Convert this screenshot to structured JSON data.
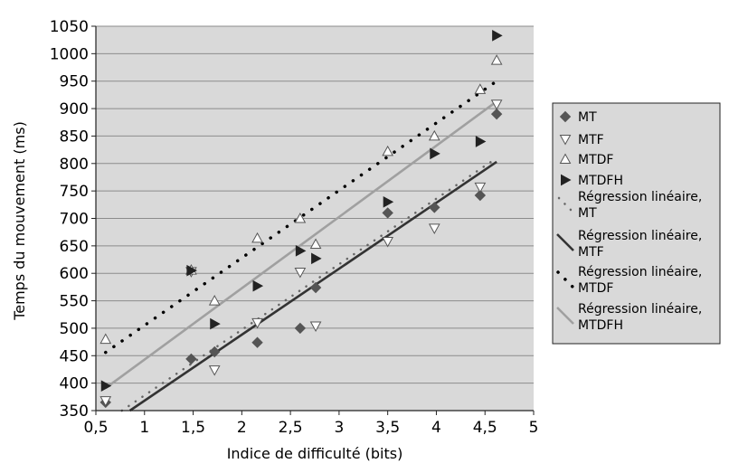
{
  "chart_data": {
    "type": "scatter",
    "title": "",
    "xlabel": "Indice de difficulté (bits)",
    "ylabel": "Temps du mouvement (ms)",
    "xlim": [
      0.5,
      5
    ],
    "ylim": [
      350,
      1050
    ],
    "xticks": [
      0.5,
      1,
      1.5,
      2,
      2.5,
      3,
      3.5,
      4,
      4.5,
      5
    ],
    "xtick_labels": [
      "0,5",
      "1",
      "1,5",
      "2",
      "2,5",
      "3",
      "3,5",
      "4",
      "4,5",
      "5"
    ],
    "yticks": [
      350,
      400,
      450,
      500,
      550,
      600,
      650,
      700,
      750,
      800,
      850,
      900,
      950,
      1000,
      1050
    ],
    "ytick_labels": [
      "350",
      "400",
      "450",
      "500",
      "550",
      "600",
      "650",
      "700",
      "750",
      "800",
      "850",
      "900",
      "950",
      "1000",
      "1050"
    ],
    "grid": "horizontal",
    "legend_position": "right",
    "plot_background": "#d9d9d9",
    "series": [
      {
        "name": "MT",
        "marker": "diamond",
        "color": "#555555",
        "x": [
          0.6,
          1.48,
          1.72,
          2.16,
          2.6,
          2.76,
          3.5,
          3.98,
          4.45,
          4.62
        ],
        "y": [
          365,
          444,
          457,
          474,
          500,
          574,
          710,
          720,
          742,
          890
        ]
      },
      {
        "name": "MTF",
        "marker": "triangle-down",
        "color": "#444444",
        "x": [
          0.6,
          1.48,
          1.72,
          2.16,
          2.6,
          2.76,
          3.5,
          3.98,
          4.45,
          4.62
        ],
        "y": [
          368,
          603,
          424,
          510,
          602,
          504,
          658,
          682,
          757,
          908
        ]
      },
      {
        "name": "MTDF",
        "marker": "triangle-up",
        "color": "#444444",
        "x": [
          0.6,
          1.48,
          1.72,
          2.16,
          2.6,
          2.76,
          3.5,
          3.98,
          4.45,
          4.62
        ],
        "y": [
          480,
          606,
          550,
          664,
          700,
          653,
          822,
          850,
          935,
          988
        ]
      },
      {
        "name": "MTDFH",
        "marker": "triangle-right",
        "color": "#222222",
        "x": [
          0.6,
          1.48,
          1.72,
          2.16,
          2.6,
          2.76,
          3.5,
          3.98,
          4.45,
          4.62
        ],
        "y": [
          395,
          605,
          508,
          577,
          641,
          627,
          730,
          818,
          840,
          1033
        ]
      }
    ],
    "trendlines": [
      {
        "name": "Régression linéaire, MT",
        "style": "dotted-small",
        "color": "#666666",
        "x": [
          0.6,
          4.62
        ],
        "y": [
          330,
          810
        ]
      },
      {
        "name": "Régression linéaire, MTF",
        "style": "solid",
        "color": "#333333",
        "x": [
          0.6,
          4.62
        ],
        "y": [
          320,
          803
        ]
      },
      {
        "name": "Régression linéaire, MTDF",
        "style": "dotted-large",
        "color": "#000000",
        "x": [
          0.6,
          4.62
        ],
        "y": [
          456,
          950
        ]
      },
      {
        "name": "Régression linéaire, MTDFH",
        "style": "solid",
        "color": "#a0a0a0",
        "x": [
          0.6,
          4.62
        ],
        "y": [
          391,
          913
        ]
      }
    ],
    "legend": [
      {
        "lines": [
          "MT"
        ],
        "symbol": "diamond"
      },
      {
        "lines": [
          "MTF"
        ],
        "symbol": "triangle-down"
      },
      {
        "lines": [
          "MTDF"
        ],
        "symbol": "triangle-up"
      },
      {
        "lines": [
          "MTDFH"
        ],
        "symbol": "triangle-right"
      },
      {
        "lines": [
          "Régression linéaire,",
          "MT"
        ],
        "symbol": "dotted-small"
      },
      {
        "lines": [
          "Régression linéaire,",
          "MTF"
        ],
        "symbol": "solid-dark"
      },
      {
        "lines": [
          "Régression linéaire,",
          "MTDF"
        ],
        "symbol": "dotted-large"
      },
      {
        "lines": [
          "Régression linéaire,",
          "MTDFH"
        ],
        "symbol": "solid-gray"
      }
    ]
  }
}
